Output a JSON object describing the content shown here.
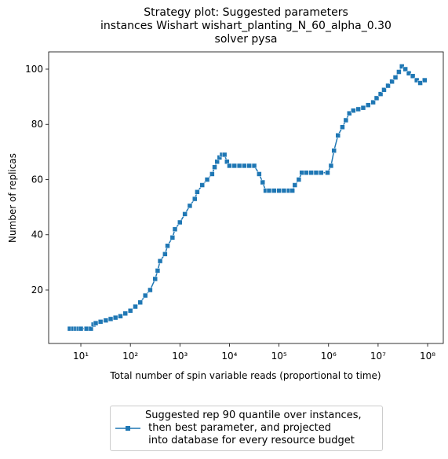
{
  "chart_data": {
    "type": "line",
    "title": "Strategy plot: Suggested parameters\ninstances Wishart wishart_planting_N_60_alpha_0.30\nsolver pysa",
    "x_label": "Total number of spin variable reads (proportional to time)",
    "y_label": "Number of replicas",
    "x_log": true,
    "xlim": [
      2.24,
      207000000
    ],
    "ylim": [
      0.64,
      106.26
    ],
    "xticks": [
      {
        "value": 10,
        "label": "10¹"
      },
      {
        "value": 100,
        "label": "10²"
      },
      {
        "value": 1000,
        "label": "10³"
      },
      {
        "value": 10000,
        "label": "10⁴"
      },
      {
        "value": 100000,
        "label": "10⁵"
      },
      {
        "value": 1000000,
        "label": "10⁶"
      },
      {
        "value": 10000000,
        "label": "10⁷"
      },
      {
        "value": 100000000,
        "label": "10⁸"
      }
    ],
    "yticks": [
      20,
      40,
      60,
      80,
      100
    ],
    "legend_position": "below",
    "x": [
      6,
      7,
      8,
      9,
      10,
      13,
      16,
      18,
      20,
      25,
      32,
      40,
      50,
      63,
      79,
      100,
      126,
      158,
      200,
      251,
      316,
      355,
      398,
      501,
      562,
      708,
      794,
      1000,
      1259,
      1585,
      1995,
      2239,
      2818,
      3548,
      4467,
      5012,
      5623,
      6310,
      7079,
      7943,
      8913,
      10000,
      12589,
      15849,
      19953,
      25119,
      31623,
      39811,
      46774,
      53703,
      63096,
      79433,
      100000,
      125893,
      158489,
      186209,
      208930,
      251189,
      288403,
      354813,
      446684,
      562341,
      707946,
      954993,
      1122018,
      1288250,
      1548817,
      1905461,
      2238721,
      2630268,
      3162278,
      3981072,
      5011872,
      6309573,
      7943282,
      9332543,
      11220185,
      13182567,
      15848932,
      19054607,
      22387211,
      26302680,
      30199517,
      35481339,
      41686938,
      50118723,
      60255959,
      70794578,
      87096359
    ],
    "series": [
      {
        "name": "Suggested rep 90 quantile over instances,\n then best parameter, and projected\n into database for every resource budget",
        "color": "#1f77b4",
        "values": [
          6,
          6,
          6,
          6,
          6,
          6,
          6,
          7.5,
          8,
          8.5,
          9,
          9.5,
          10,
          10.5,
          11.5,
          12.5,
          14,
          15.5,
          18,
          20,
          24,
          27,
          30.5,
          33,
          36,
          39,
          42,
          44.5,
          47.5,
          50.5,
          53,
          55.5,
          58,
          60,
          62,
          64.5,
          66.5,
          68,
          69,
          69,
          66.5,
          65,
          65,
          65,
          65,
          65,
          65,
          62,
          59,
          56,
          56,
          56,
          56,
          56,
          56,
          56,
          58,
          60,
          62.5,
          62.5,
          62.5,
          62.5,
          62.5,
          62.5,
          65,
          70.5,
          76,
          79,
          81.5,
          84,
          85,
          85.5,
          86,
          87,
          88,
          89.5,
          91,
          92.5,
          94,
          95.5,
          97,
          99,
          101,
          100,
          98.5,
          97.5,
          96,
          95,
          96
        ]
      }
    ]
  }
}
